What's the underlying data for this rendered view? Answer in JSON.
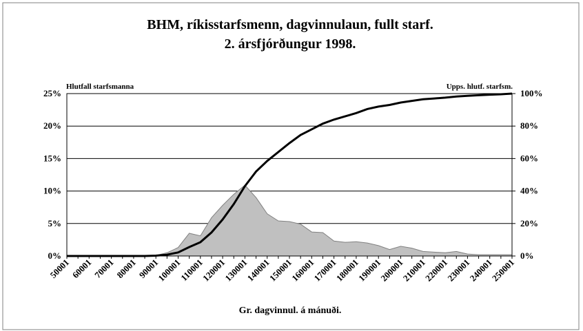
{
  "chart_data": {
    "type": "combo",
    "title": "BHM, ríkisstarfsmenn, dagvinnulaun, fullt starf.",
    "subtitle": "2. ársfjórðungur 1998.",
    "ylabel": "Hlutfall starfsmanna",
    "y2label": "Upps. hlutf. starfsm.",
    "xlabel": "Gr. dagvinnul. á mánuði.",
    "categories": [
      "50001",
      null,
      "60001",
      null,
      "70001",
      null,
      "80001",
      null,
      "90001",
      null,
      "100001",
      null,
      "110001",
      null,
      "120001",
      null,
      "130001",
      null,
      "140001",
      null,
      "150001",
      null,
      "160001",
      null,
      "170001",
      null,
      "180001",
      null,
      "190001",
      null,
      "200001",
      null,
      "210001",
      null,
      "220001",
      null,
      "230001",
      null,
      "240001",
      null,
      "250001"
    ],
    "series": [
      {
        "type": "area",
        "axis": "y",
        "color": "#c0c0c0",
        "edge": "#808080",
        "values": [
          0,
          0,
          0,
          0,
          0,
          0,
          0,
          0,
          0.1,
          0.5,
          1.3,
          3.5,
          3.1,
          5.9,
          7.8,
          9.5,
          10.9,
          9.0,
          6.5,
          5.4,
          5.3,
          4.9,
          3.7,
          3.6,
          2.3,
          2.1,
          2.2,
          2.0,
          1.6,
          1.0,
          1.5,
          1.2,
          0.7,
          0.6,
          0.5,
          0.7,
          0.3,
          0.2,
          0.2,
          0.2,
          0.2
        ]
      },
      {
        "type": "line",
        "axis": "y2",
        "color": "#000000",
        "values": [
          0,
          0,
          0,
          0,
          0,
          0,
          0,
          0,
          0.2,
          0.8,
          2.2,
          5.5,
          8.5,
          14.5,
          22.5,
          32,
          43,
          52,
          58.5,
          64,
          69.5,
          74.5,
          78,
          81.5,
          84,
          86,
          88,
          90.5,
          92,
          93,
          94.5,
          95.5,
          96.5,
          97,
          97.5,
          98.2,
          98.6,
          99,
          99.3,
          99.6,
          100
        ]
      }
    ],
    "ylim": [
      0,
      25
    ],
    "yticks": [
      {
        "value": 0,
        "label": "0%"
      },
      {
        "value": 5,
        "label": "5%"
      },
      {
        "value": 10,
        "label": "10%"
      },
      {
        "value": 15,
        "label": "15%"
      },
      {
        "value": 20,
        "label": "20%"
      },
      {
        "value": 25,
        "label": "25%"
      }
    ],
    "y2lim": [
      0,
      100
    ],
    "y2ticks": [
      {
        "value": 0,
        "label": "0%"
      },
      {
        "value": 20,
        "label": "20%"
      },
      {
        "value": 40,
        "label": "40%"
      },
      {
        "value": 60,
        "label": "60%"
      },
      {
        "value": 80,
        "label": "80%"
      },
      {
        "value": 100,
        "label": "100%"
      }
    ],
    "grid": true
  }
}
